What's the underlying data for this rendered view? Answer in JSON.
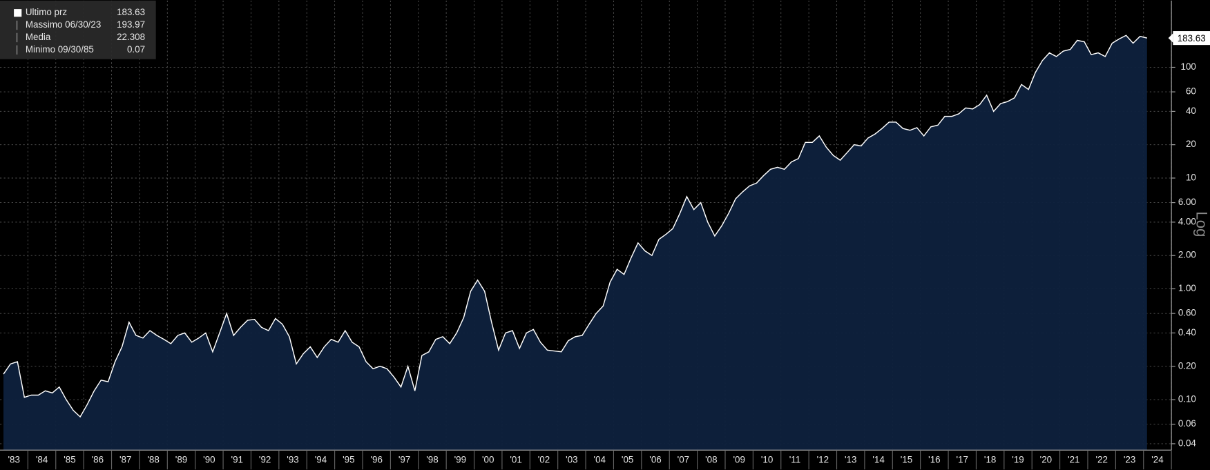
{
  "chart_data": {
    "type": "area",
    "log_scale": true,
    "grid": true,
    "color": "#0e213d",
    "line_color": "#ffffff",
    "axis_label": "Log",
    "legend": [
      {
        "label": "Ultimo prz",
        "value": "183.63"
      },
      {
        "label": "Massimo 06/30/23",
        "value": "193.97"
      },
      {
        "label": "Media",
        "value": "22.308"
      },
      {
        "label": "Minimo 09/30/85",
        "value": "0.07"
      }
    ],
    "categories": [
      "'83",
      null,
      null,
      null,
      "'84",
      null,
      null,
      null,
      "'85",
      null,
      null,
      null,
      "'86",
      null,
      null,
      null,
      "'87",
      null,
      null,
      null,
      "'88",
      null,
      null,
      null,
      "'89",
      null,
      null,
      null,
      "'90",
      null,
      null,
      null,
      "'91",
      null,
      null,
      null,
      "'92",
      null,
      null,
      null,
      "'93",
      null,
      null,
      null,
      "'94",
      null,
      null,
      null,
      "'95",
      null,
      null,
      null,
      "'96",
      null,
      null,
      null,
      "'97",
      null,
      null,
      null,
      "'98",
      null,
      null,
      null,
      "'99",
      null,
      null,
      null,
      "'00",
      null,
      null,
      null,
      "'01",
      null,
      null,
      null,
      "'02",
      null,
      null,
      null,
      "'03",
      null,
      null,
      null,
      "'04",
      null,
      null,
      null,
      "'05",
      null,
      null,
      null,
      "'06",
      null,
      null,
      null,
      "'07",
      null,
      null,
      null,
      "'08",
      null,
      null,
      null,
      "'09",
      null,
      null,
      null,
      "'10",
      null,
      null,
      null,
      "'11",
      null,
      null,
      null,
      "'12",
      null,
      null,
      null,
      "'13",
      null,
      null,
      null,
      "'14",
      null,
      null,
      null,
      "'15",
      null,
      null,
      null,
      "'16",
      null,
      null,
      null,
      "'17",
      null,
      null,
      null,
      "'18",
      null,
      null,
      null,
      "'19",
      null,
      null,
      null,
      "'20",
      null,
      null,
      null,
      "'21",
      null,
      null,
      null,
      "'22",
      null,
      null,
      null,
      "'23",
      null,
      null,
      null,
      "'24"
    ],
    "values": [
      0.17,
      0.21,
      0.22,
      0.105,
      0.11,
      0.11,
      0.12,
      0.115,
      0.13,
      0.1,
      0.08,
      0.07,
      0.09,
      0.12,
      0.15,
      0.145,
      0.22,
      0.3,
      0.5,
      0.38,
      0.36,
      0.42,
      0.38,
      0.35,
      0.32,
      0.38,
      0.4,
      0.33,
      0.36,
      0.4,
      0.27,
      0.4,
      0.6,
      0.38,
      0.45,
      0.52,
      0.53,
      0.45,
      0.42,
      0.54,
      0.48,
      0.37,
      0.21,
      0.26,
      0.3,
      0.24,
      0.3,
      0.35,
      0.33,
      0.42,
      0.33,
      0.3,
      0.22,
      0.19,
      0.2,
      0.19,
      0.16,
      0.13,
      0.2,
      0.12,
      0.25,
      0.27,
      0.35,
      0.37,
      0.32,
      0.4,
      0.55,
      0.95,
      1.2,
      0.95,
      0.5,
      0.28,
      0.4,
      0.42,
      0.29,
      0.4,
      0.43,
      0.33,
      0.28,
      0.275,
      0.27,
      0.34,
      0.37,
      0.38,
      0.48,
      0.6,
      0.7,
      1.15,
      1.5,
      1.35,
      1.9,
      2.6,
      2.2,
      2.0,
      2.8,
      3.1,
      3.5,
      4.8,
      6.8,
      5.2,
      6.0,
      4.0,
      3.0,
      3.7,
      4.8,
      6.5,
      7.5,
      8.5,
      9.0,
      10.5,
      12.0,
      12.5,
      12.0,
      14.0,
      15.0,
      21.0,
      21.0,
      24.0,
      19.0,
      16.0,
      14.5,
      17.0,
      20.0,
      19.5,
      23.0,
      25.0,
      28.0,
      32.0,
      32.0,
      28.0,
      27.0,
      28.5,
      24.0,
      29.0,
      30.0,
      36.0,
      36.0,
      38.0,
      43.0,
      42.0,
      46.0,
      56.0,
      40.0,
      47.0,
      49.0,
      53.0,
      70.0,
      63.0,
      90.0,
      115,
      135,
      125,
      140,
      145,
      175,
      170,
      130,
      135,
      125,
      165,
      180,
      194,
      165,
      190,
      183.63
    ],
    "ylim": [
      0.035,
      400
    ],
    "yticks": [
      0.04,
      0.06,
      {
        "value": 0.1,
        "label": "0.10"
      },
      {
        "value": 0.2,
        "label": "0.20"
      },
      {
        "value": 0.4,
        "label": "0.40"
      },
      {
        "value": 0.6,
        "label": "0.60"
      },
      {
        "value": 1,
        "label": "1.00"
      },
      {
        "value": 2,
        "label": "2.00"
      },
      {
        "value": 4,
        "label": "4.00"
      },
      {
        "value": 6,
        "label": "6.00"
      },
      10,
      20,
      40,
      60,
      100
    ]
  }
}
